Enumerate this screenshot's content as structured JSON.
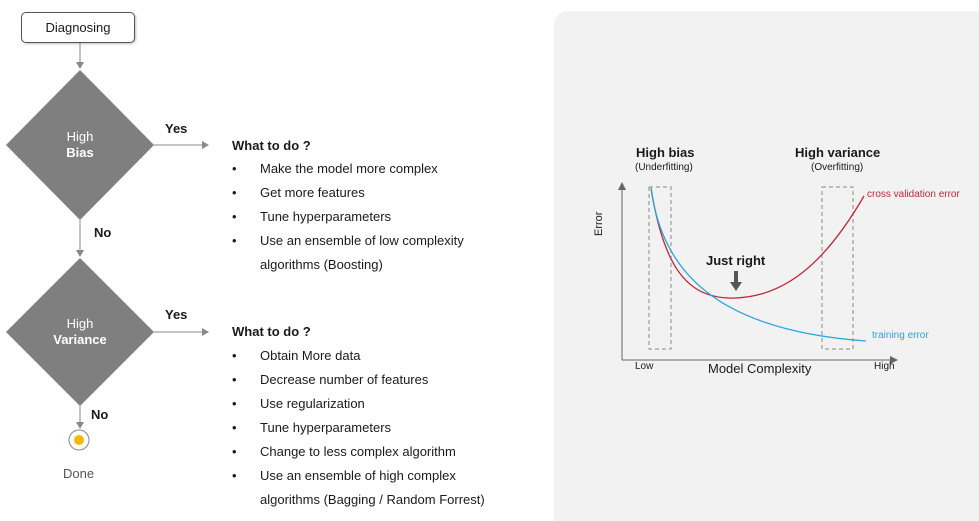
{
  "flow": {
    "start_label": "Diagnosing",
    "bias_line1": "High",
    "bias_line2": "Bias",
    "variance_line1": "High",
    "variance_line2": "Variance",
    "yes1": "Yes",
    "no1": "No",
    "yes2": "Yes",
    "no2": "No",
    "done_label": "Done",
    "end_dot_color": "#f5b800",
    "diamond_color": "#7f7f7f"
  },
  "bias_actions": {
    "title": "What to do ?",
    "items": [
      "Make the model more complex",
      "Get more features",
      "Tune hyperparameters",
      "Use an ensemble of low complexity algorithms (Boosting)"
    ],
    "last_item_line1": "Use an ensemble of low complexity",
    "last_item_line2": "algorithms (Boosting)"
  },
  "variance_actions": {
    "title": "What to do ?",
    "items": [
      "Obtain More data",
      "Decrease number of features",
      "Use regularization",
      "Tune  hyperparameters",
      "Change to less complex algorithm",
      "Use an ensemble of high complex algorithms (Bagging / Random Forrest)"
    ],
    "last_item_line1": "Use an ensemble of high complex",
    "last_item_line2": "algorithms (Bagging / Random Forrest)"
  },
  "chart": {
    "high_bias_title": "High bias",
    "high_bias_sub": "(Underfitting)",
    "high_variance_title": "High variance",
    "high_variance_sub": "(Overfitting)",
    "y_label": "Error",
    "x_label": "Model Complexity",
    "x_low": "Low",
    "x_high": "High",
    "just_right": "Just right",
    "cv_label": "cross validation error",
    "train_label": "training error",
    "cv_color": "#c0283a",
    "train_color": "#2aa7dc"
  }
}
